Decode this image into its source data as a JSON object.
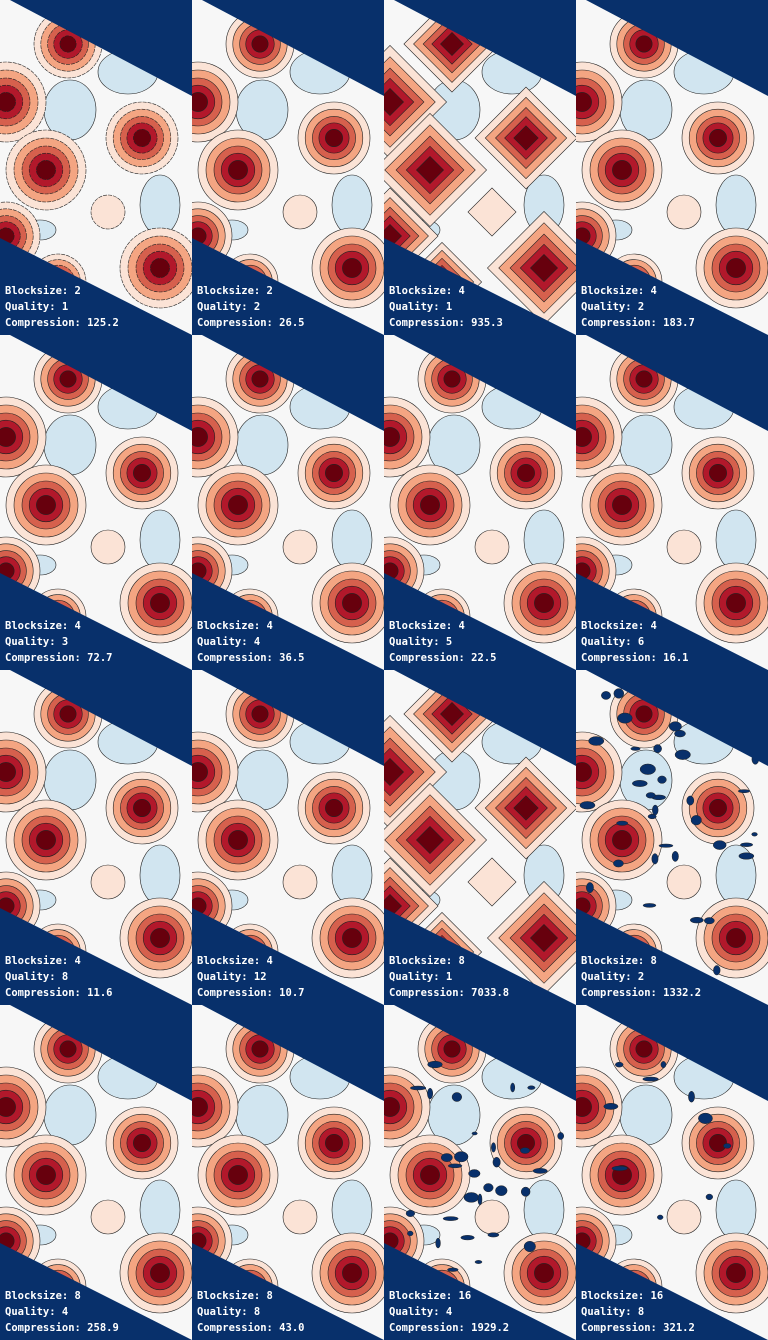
{
  "colors": {
    "mask": "#08306b",
    "contour": "#222222",
    "deep_red": "#67000d",
    "red": "#b2182b",
    "light_red": "#f4a582",
    "pale": "#fbe3d6",
    "white": "#f7f7f7",
    "pale_blue": "#d1e5f0",
    "blue": "#92c5de"
  },
  "labels": {
    "blocksize": "Blocksize:",
    "quality": "Quality:",
    "compression": "Compression:"
  },
  "panels": [
    {
      "blocksize": "2",
      "quality": "1",
      "compression": "125.2",
      "artifact": "blocky-small"
    },
    {
      "blocksize": "2",
      "quality": "2",
      "compression": "26.5",
      "artifact": "smooth"
    },
    {
      "blocksize": "4",
      "quality": "1",
      "compression": "935.3",
      "artifact": "blocky"
    },
    {
      "blocksize": "4",
      "quality": "2",
      "compression": "183.7",
      "artifact": "smooth"
    },
    {
      "blocksize": "4",
      "quality": "3",
      "compression": "72.7",
      "artifact": "smooth"
    },
    {
      "blocksize": "4",
      "quality": "4",
      "compression": "36.5",
      "artifact": "smooth"
    },
    {
      "blocksize": "4",
      "quality": "5",
      "compression": "22.5",
      "artifact": "smooth"
    },
    {
      "blocksize": "4",
      "quality": "6",
      "compression": "16.1",
      "artifact": "smooth"
    },
    {
      "blocksize": "4",
      "quality": "8",
      "compression": "11.6",
      "artifact": "smooth"
    },
    {
      "blocksize": "4",
      "quality": "12",
      "compression": "10.7",
      "artifact": "smooth"
    },
    {
      "blocksize": "8",
      "quality": "1",
      "compression": "7033.8",
      "artifact": "very-blocky"
    },
    {
      "blocksize": "8",
      "quality": "2",
      "compression": "1332.2",
      "artifact": "noisy"
    },
    {
      "blocksize": "8",
      "quality": "4",
      "compression": "258.9",
      "artifact": "smooth"
    },
    {
      "blocksize": "8",
      "quality": "8",
      "compression": "43.0",
      "artifact": "smooth"
    },
    {
      "blocksize": "16",
      "quality": "4",
      "compression": "1929.2",
      "artifact": "noisy"
    },
    {
      "blocksize": "16",
      "quality": "8",
      "compression": "321.2",
      "artifact": "noisy-light"
    }
  ]
}
